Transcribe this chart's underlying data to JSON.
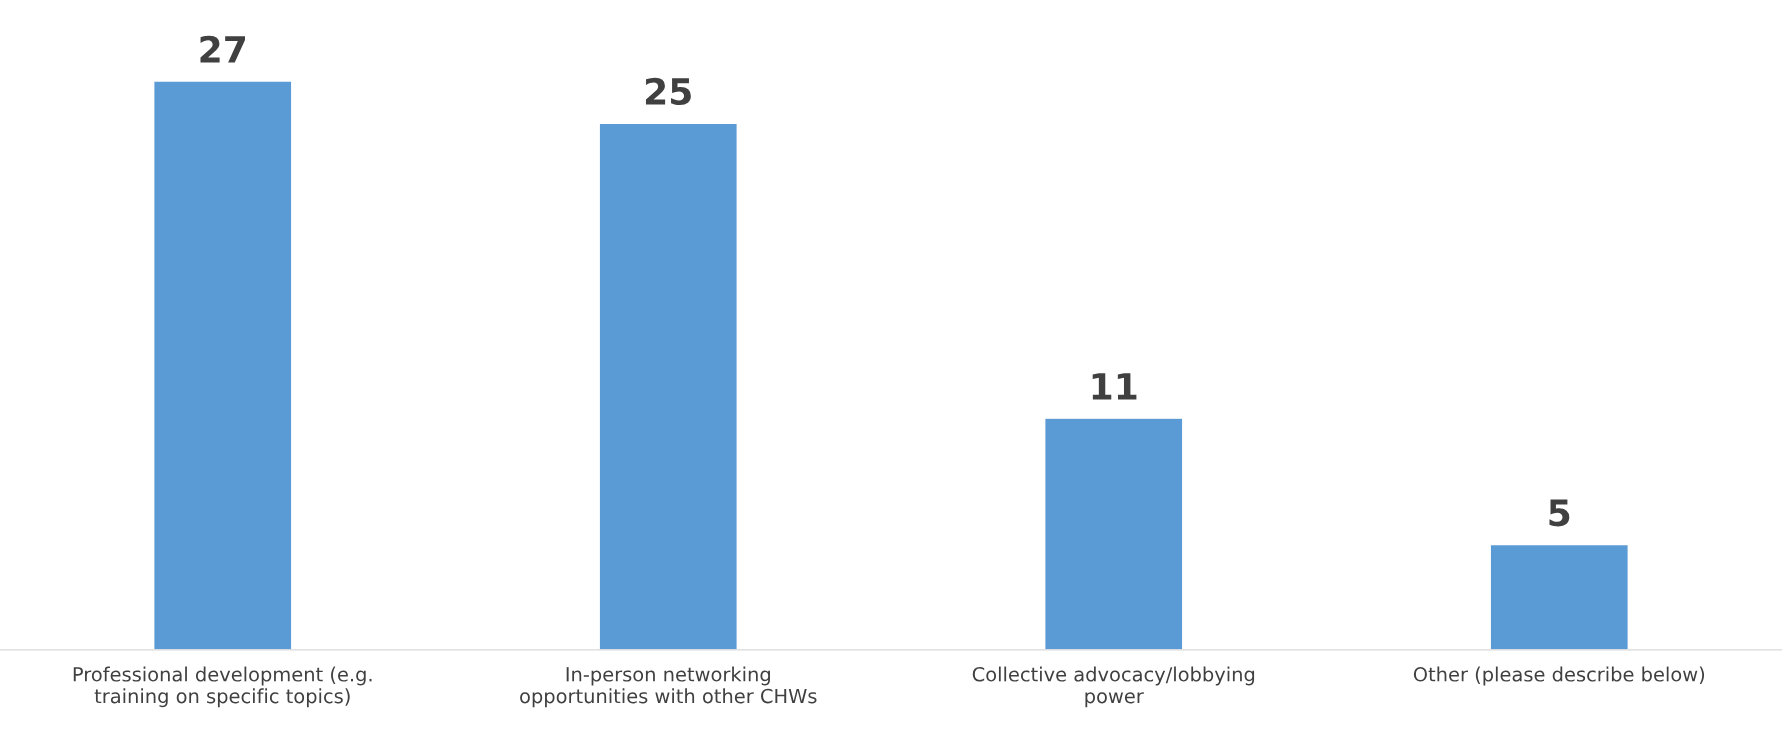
{
  "chart_data": {
    "type": "bar",
    "categories": [
      "Professional development (e.g.\ntraining on specific topics)",
      "In-person networking\nopportunities with other CHWs",
      "Collective advocacy/lobbying\npower",
      "Other (please describe below)"
    ],
    "values": [
      27,
      25,
      11,
      5
    ],
    "color": "#5b9bd5",
    "data_labels": true,
    "grid": false,
    "legend": false
  }
}
